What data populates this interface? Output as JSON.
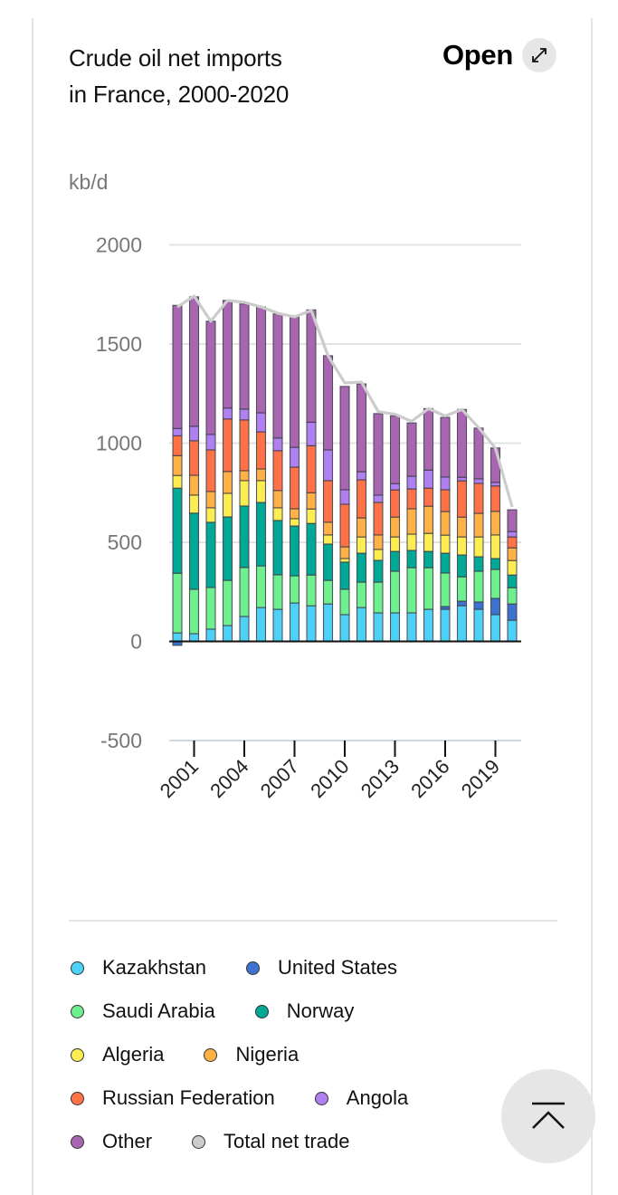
{
  "header": {
    "title_line1": "Crude oil net imports",
    "title_line2": "in France, 2000-2020",
    "open_label": "Open",
    "open_icon": "expand-arrows-icon"
  },
  "scroll_top": {
    "icon": "scroll-to-top-icon"
  },
  "colors": {
    "Kazakhstan": "#4dd1f7",
    "United States": "#3e72d0",
    "Saudi Arabia": "#6ef08f",
    "Norway": "#00a896",
    "Algeria": "#fbed52",
    "Nigeria": "#fdb147",
    "Russian Federation": "#ff7147",
    "Angola": "#b07ff0",
    "Other": "#a966b0",
    "Total net trade": "#cccccc"
  },
  "chart_data": {
    "type": "bar",
    "stacked": true,
    "title": "Crude oil net imports in France, 2000-2020",
    "xlabel": "",
    "ylabel": "kb/d",
    "ylim": [
      -500,
      2000
    ],
    "yticks": [
      -500,
      0,
      500,
      1000,
      1500,
      2000
    ],
    "ytick_labels": [
      "-500",
      "0",
      "500",
      "1000",
      "1500",
      "2000"
    ],
    "grid": true,
    "categories": [
      2000,
      2001,
      2002,
      2003,
      2004,
      2005,
      2006,
      2007,
      2008,
      2009,
      2010,
      2011,
      2012,
      2013,
      2014,
      2015,
      2016,
      2017,
      2018,
      2019,
      2020
    ],
    "xtick_labels": [
      "2001",
      "2004",
      "2007",
      "2010",
      "2013",
      "2016",
      "2019"
    ],
    "legend_position": "bottom",
    "series": [
      {
        "name": "Kazakhstan",
        "values": [
          43,
          39,
          62,
          80,
          126,
          171,
          162,
          194,
          180,
          189,
          135,
          171,
          144,
          144,
          144,
          162,
          162,
          180,
          162,
          135,
          107
        ]
      },
      {
        "name": "United States",
        "values": [
          -20,
          0,
          0,
          0,
          0,
          0,
          0,
          0,
          0,
          0,
          0,
          0,
          0,
          0,
          0,
          0,
          14,
          23,
          37,
          82,
          82
        ]
      },
      {
        "name": "Saudi Arabia",
        "values": [
          301,
          224,
          210,
          228,
          247,
          210,
          174,
          137,
          155,
          119,
          128,
          128,
          155,
          210,
          228,
          210,
          169,
          123,
          155,
          146,
          82
        ]
      },
      {
        "name": "Norway",
        "values": [
          429,
          384,
          329,
          320,
          310,
          320,
          274,
          251,
          260,
          183,
          137,
          146,
          110,
          100,
          87,
          82,
          100,
          110,
          73,
          55,
          64
        ]
      },
      {
        "name": "Algeria",
        "values": [
          64,
          91,
          73,
          119,
          128,
          110,
          64,
          37,
          73,
          46,
          18,
          82,
          55,
          73,
          82,
          91,
          91,
          91,
          100,
          119,
          73
        ]
      },
      {
        "name": "Nigeria",
        "values": [
          100,
          100,
          82,
          110,
          50,
          59,
          87,
          50,
          82,
          64,
          59,
          96,
          73,
          100,
          128,
          137,
          119,
          100,
          119,
          119,
          64
        ]
      },
      {
        "name": "Russian Federation",
        "values": [
          100,
          174,
          210,
          265,
          256,
          187,
          201,
          210,
          237,
          210,
          215,
          192,
          164,
          137,
          100,
          91,
          110,
          183,
          151,
          128,
          55
        ]
      },
      {
        "name": "Angola",
        "values": [
          37,
          73,
          78,
          55,
          55,
          96,
          64,
          100,
          119,
          155,
          73,
          41,
          37,
          32,
          64,
          91,
          64,
          18,
          23,
          18,
          27
        ]
      },
      {
        "name": "Other",
        "values": [
          621,
          653,
          571,
          543,
          530,
          534,
          626,
          658,
          566,
          475,
          521,
          443,
          411,
          342,
          269,
          310,
          301,
          342,
          256,
          174,
          110
        ]
      }
    ],
    "line_series": {
      "name": "Total net trade",
      "type": "line",
      "values": [
        1687,
        1742,
        1615,
        1720,
        1710,
        1687,
        1655,
        1637,
        1669,
        1441,
        1304,
        1308,
        1159,
        1146,
        1110,
        1174,
        1137,
        1170,
        1078,
        975,
        678
      ]
    }
  },
  "legend": {
    "rows": [
      [
        {
          "key": "Kazakhstan",
          "label": "Kazakhstan"
        },
        {
          "key": "United States",
          "label": "United States"
        }
      ],
      [
        {
          "key": "Saudi Arabia",
          "label": "Saudi Arabia"
        },
        {
          "key": "Norway",
          "label": "Norway"
        }
      ],
      [
        {
          "key": "Algeria",
          "label": "Algeria"
        },
        {
          "key": "Nigeria",
          "label": "Nigeria"
        }
      ],
      [
        {
          "key": "Russian Federation",
          "label": "Russian Federation"
        },
        {
          "key": "Angola",
          "label": "Angola"
        }
      ],
      [
        {
          "key": "Other",
          "label": "Other"
        },
        {
          "key": "Total net trade",
          "label": "Total net trade"
        }
      ]
    ]
  }
}
